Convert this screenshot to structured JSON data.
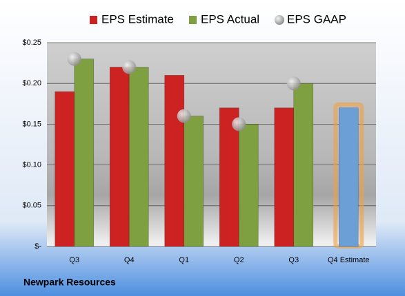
{
  "chart_data": {
    "type": "bar",
    "categories": [
      "Q3",
      "Q4",
      "Q1",
      "Q2",
      "Q3",
      "Q4 Estimate"
    ],
    "series": [
      {
        "name": "EPS Estimate",
        "color": "#cc2222",
        "values": [
          0.19,
          0.22,
          0.21,
          0.17,
          0.17,
          0.17
        ]
      },
      {
        "name": "EPS Actual",
        "color": "#7fa040",
        "values": [
          0.23,
          0.22,
          0.16,
          0.15,
          0.2,
          null
        ]
      },
      {
        "name": "EPS GAAP",
        "color": "#b0b0b0",
        "marker": "circle",
        "values": [
          0.23,
          0.22,
          0.16,
          0.15,
          0.2,
          null
        ]
      }
    ],
    "highlight_color": "#6c9fd6",
    "ylim": [
      0,
      0.25
    ],
    "yticks": [
      {
        "value": 0,
        "label": "$-"
      },
      {
        "value": 0.05,
        "label": "$0.05"
      },
      {
        "value": 0.1,
        "label": "$0.10"
      },
      {
        "value": 0.15,
        "label": "$0.15"
      },
      {
        "value": 0.2,
        "label": "$0.20"
      },
      {
        "value": 0.25,
        "label": "$0.25"
      }
    ],
    "grid": true,
    "footer": "Newpark Resources"
  }
}
